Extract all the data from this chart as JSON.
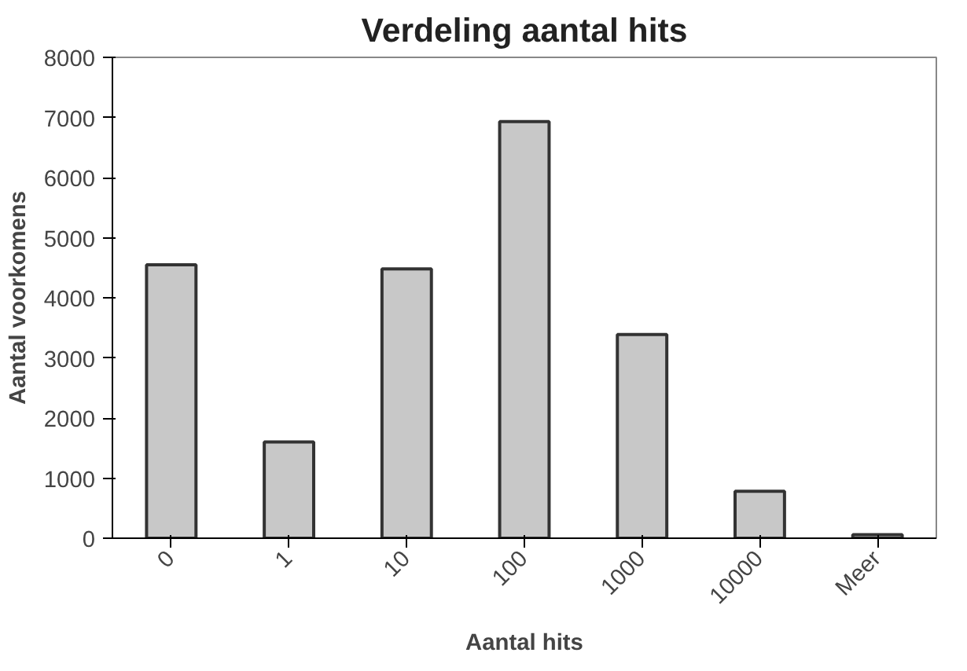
{
  "chart_data": {
    "type": "bar",
    "title": "Verdeling aantal hits",
    "xlabel": "Aantal hits",
    "ylabel": "Aantal voorkomens",
    "categories": [
      "0",
      "1",
      "10",
      "100",
      "1000",
      "10000",
      "Meer"
    ],
    "values": [
      4550,
      1600,
      4480,
      6930,
      3390,
      780,
      60
    ],
    "color": "#c8c8c8",
    "ylim": [
      0,
      8000
    ],
    "yticks": [
      0,
      1000,
      2000,
      3000,
      4000,
      5000,
      6000,
      7000,
      8000
    ],
    "grid": false
  }
}
